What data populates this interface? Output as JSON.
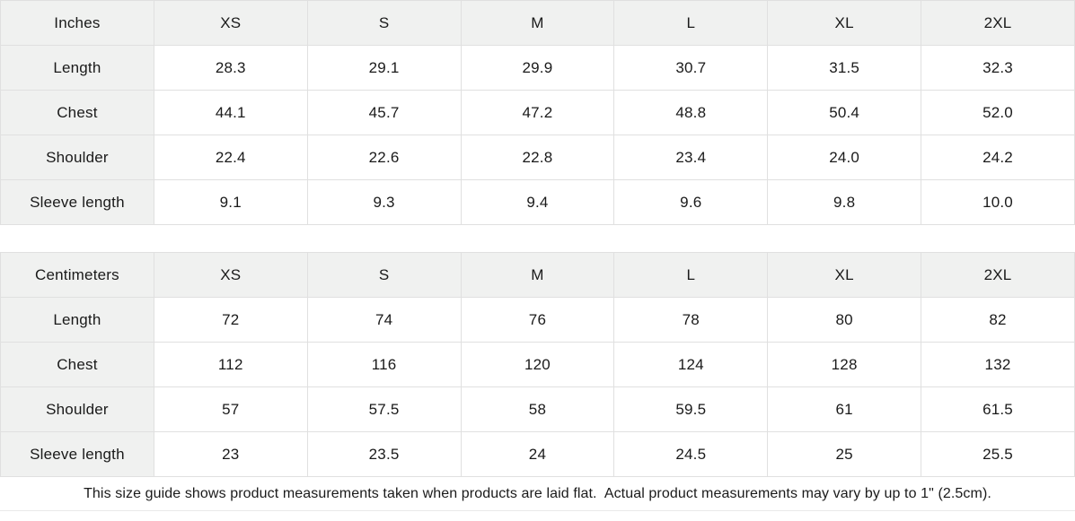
{
  "colors": {
    "header_bg": "#f0f1f0",
    "border": "#e0e0e0",
    "text": "#1a1a1a",
    "footer_border": "#e9e9e9"
  },
  "tables": [
    {
      "unit_label": "Inches",
      "sizes": [
        "XS",
        "S",
        "M",
        "L",
        "XL",
        "2XL"
      ],
      "rows": [
        {
          "label": "Length",
          "values": [
            "28.3",
            "29.1",
            "29.9",
            "30.7",
            "31.5",
            "32.3"
          ]
        },
        {
          "label": "Chest",
          "values": [
            "44.1",
            "45.7",
            "47.2",
            "48.8",
            "50.4",
            "52.0"
          ]
        },
        {
          "label": "Shoulder",
          "values": [
            "22.4",
            "22.6",
            "22.8",
            "23.4",
            "24.0",
            "24.2"
          ]
        },
        {
          "label": "Sleeve length",
          "values": [
            "9.1",
            "9.3",
            "9.4",
            "9.6",
            "9.8",
            "10.0"
          ]
        }
      ]
    },
    {
      "unit_label": "Centimeters",
      "sizes": [
        "XS",
        "S",
        "M",
        "L",
        "XL",
        "2XL"
      ],
      "rows": [
        {
          "label": "Length",
          "values": [
            "72",
            "74",
            "76",
            "78",
            "80",
            "82"
          ]
        },
        {
          "label": "Chest",
          "values": [
            "112",
            "116",
            "120",
            "124",
            "128",
            "132"
          ]
        },
        {
          "label": "Shoulder",
          "values": [
            "57",
            "57.5",
            "58",
            "59.5",
            "61",
            "61.5"
          ]
        },
        {
          "label": "Sleeve length",
          "values": [
            "23",
            "23.5",
            "24",
            "24.5",
            "25",
            "25.5"
          ]
        }
      ]
    }
  ],
  "footer": {
    "note": "This size guide shows product measurements taken when products are laid flat.  Actual product measurements may vary by up to 1\" (2.5cm)."
  }
}
